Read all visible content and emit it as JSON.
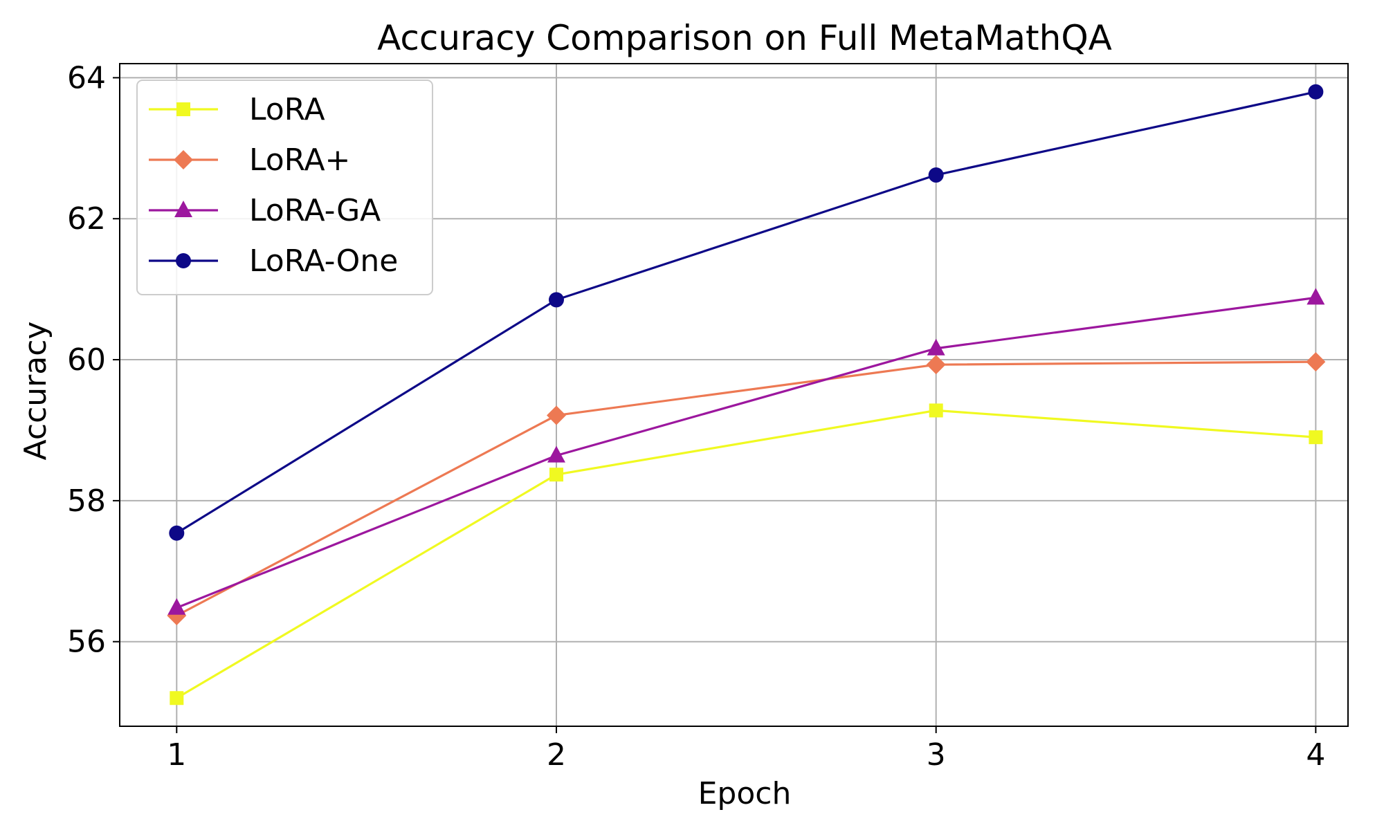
{
  "chart_data": {
    "type": "line",
    "title": "Accuracy Comparison on Full MetaMathQA",
    "xlabel": "Epoch",
    "ylabel": "Accuracy",
    "x": [
      1,
      2,
      3,
      4
    ],
    "xticks": [
      "1",
      "2",
      "3",
      "4"
    ],
    "yticks": [
      "56",
      "58",
      "60",
      "62",
      "64"
    ],
    "xlim": [
      0.85,
      4.085
    ],
    "ylim": [
      54.8,
      64.2
    ],
    "grid": true,
    "legend_position": "top-left",
    "series": [
      {
        "name": "LoRA",
        "color": "#f0f921",
        "marker": "square",
        "values": [
          55.2,
          58.37,
          59.28,
          58.9
        ]
      },
      {
        "name": "LoRA+",
        "color": "#ed7953",
        "marker": "diamond",
        "values": [
          56.37,
          59.21,
          59.93,
          59.97
        ]
      },
      {
        "name": "LoRA-GA",
        "color": "#9c179e",
        "marker": "triangle",
        "values": [
          56.48,
          58.64,
          60.16,
          60.88
        ]
      },
      {
        "name": "LoRA-One",
        "color": "#0d0887",
        "marker": "circle",
        "values": [
          57.54,
          60.85,
          62.62,
          63.8
        ]
      }
    ]
  }
}
